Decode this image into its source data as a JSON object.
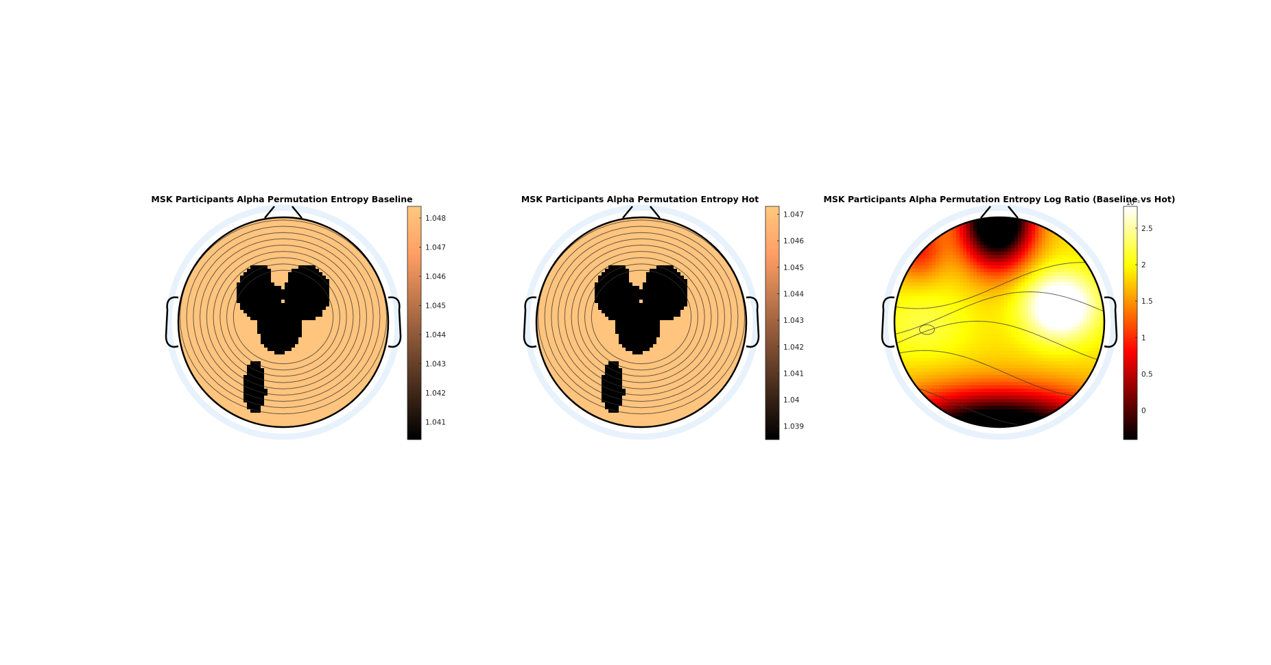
{
  "chart_data": [
    {
      "type": "heatmap",
      "title": "MSK Participants Alpha Permutation Entropy Baseline",
      "colormap": "copper",
      "clim": [
        1.0404,
        1.0484
      ],
      "colorbar_ticks": [
        "1.041",
        "1.042",
        "1.043",
        "1.044",
        "1.045",
        "1.046",
        "1.047",
        "1.048"
      ],
      "colorbar_tick_values": [
        1.041,
        1.042,
        1.043,
        1.044,
        1.045,
        1.046,
        1.047,
        1.048
      ],
      "pattern": "peak"
    },
    {
      "type": "heatmap",
      "title": "MSK Participants Alpha Permutation Entropy Hot",
      "colormap": "copper",
      "clim": [
        1.0385,
        1.0473
      ],
      "colorbar_ticks": [
        "1.039",
        "1.04",
        "1.041",
        "1.042",
        "1.043",
        "1.044",
        "1.045",
        "1.046",
        "1.047"
      ],
      "colorbar_tick_values": [
        1.039,
        1.04,
        1.041,
        1.042,
        1.043,
        1.044,
        1.045,
        1.046,
        1.047
      ],
      "pattern": "peak"
    },
    {
      "type": "heatmap",
      "title": "MSK Participants Alpha Permutation Entropy Log Ratio (Baseline vs Hot)",
      "colormap": "hot",
      "clim": [
        -0.4,
        2.8
      ],
      "colorbar_exponent": "10⁻³",
      "colorbar_ticks": [
        "0",
        "0.5",
        "1",
        "1.5",
        "2",
        "2.5"
      ],
      "colorbar_tick_values": [
        0,
        0.5,
        1,
        1.5,
        2,
        2.5
      ],
      "pattern": "ratio"
    }
  ]
}
